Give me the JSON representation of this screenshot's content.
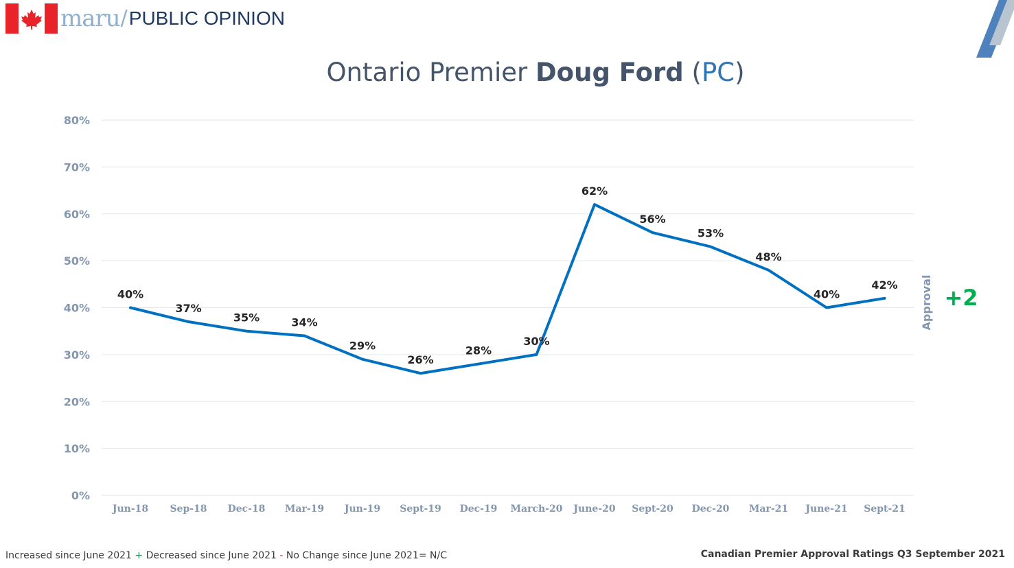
{
  "brand": {
    "name": "maru",
    "separator": "/",
    "sub": "PUBLIC OPINION"
  },
  "title": {
    "prefix": "Ontario Premier ",
    "name": "Doug Ford",
    "party": "PC"
  },
  "colors": {
    "line": "#0070c0",
    "axis_text": "#8497b0",
    "grid": "#e6e6e6",
    "label": "#262626",
    "change": "#00b050",
    "side": "#8497b0"
  },
  "chart_data": {
    "type": "line",
    "categories": [
      "Jun-18",
      "Sep-18",
      "Dec-18",
      "Mar-19",
      "Jun-19",
      "Sept-19",
      "Dec-19",
      "March-20",
      "June-20",
      "Sept-20",
      "Dec-20",
      "Mar-21",
      "June-21",
      "Sept-21"
    ],
    "series": [
      {
        "values": [
          40,
          37,
          35,
          34,
          29,
          26,
          28,
          30,
          62,
          56,
          53,
          48,
          40,
          42
        ]
      }
    ],
    "data_labels": [
      "40%",
      "37%",
      "35%",
      "34%",
      "29%",
      "26%",
      "28%",
      "30%",
      "62%",
      "56%",
      "53%",
      "48%",
      "40%",
      "42%"
    ],
    "yticks": [
      "0%",
      "10%",
      "20%",
      "30%",
      "40%",
      "50%",
      "60%",
      "70%",
      "80%"
    ],
    "ylim": [
      0,
      80
    ],
    "ylabel": "Approval",
    "change": "+2",
    "grid": true
  },
  "footer": {
    "inc": "Increased since June 2021 ",
    "inc_sym": "+",
    "dec": " Decreased since June 2021 ",
    "dec_sym": "-",
    "nc": " No Change since June 2021= N/C",
    "right": "Canadian Premier Approval Ratings Q3 September 2021"
  }
}
